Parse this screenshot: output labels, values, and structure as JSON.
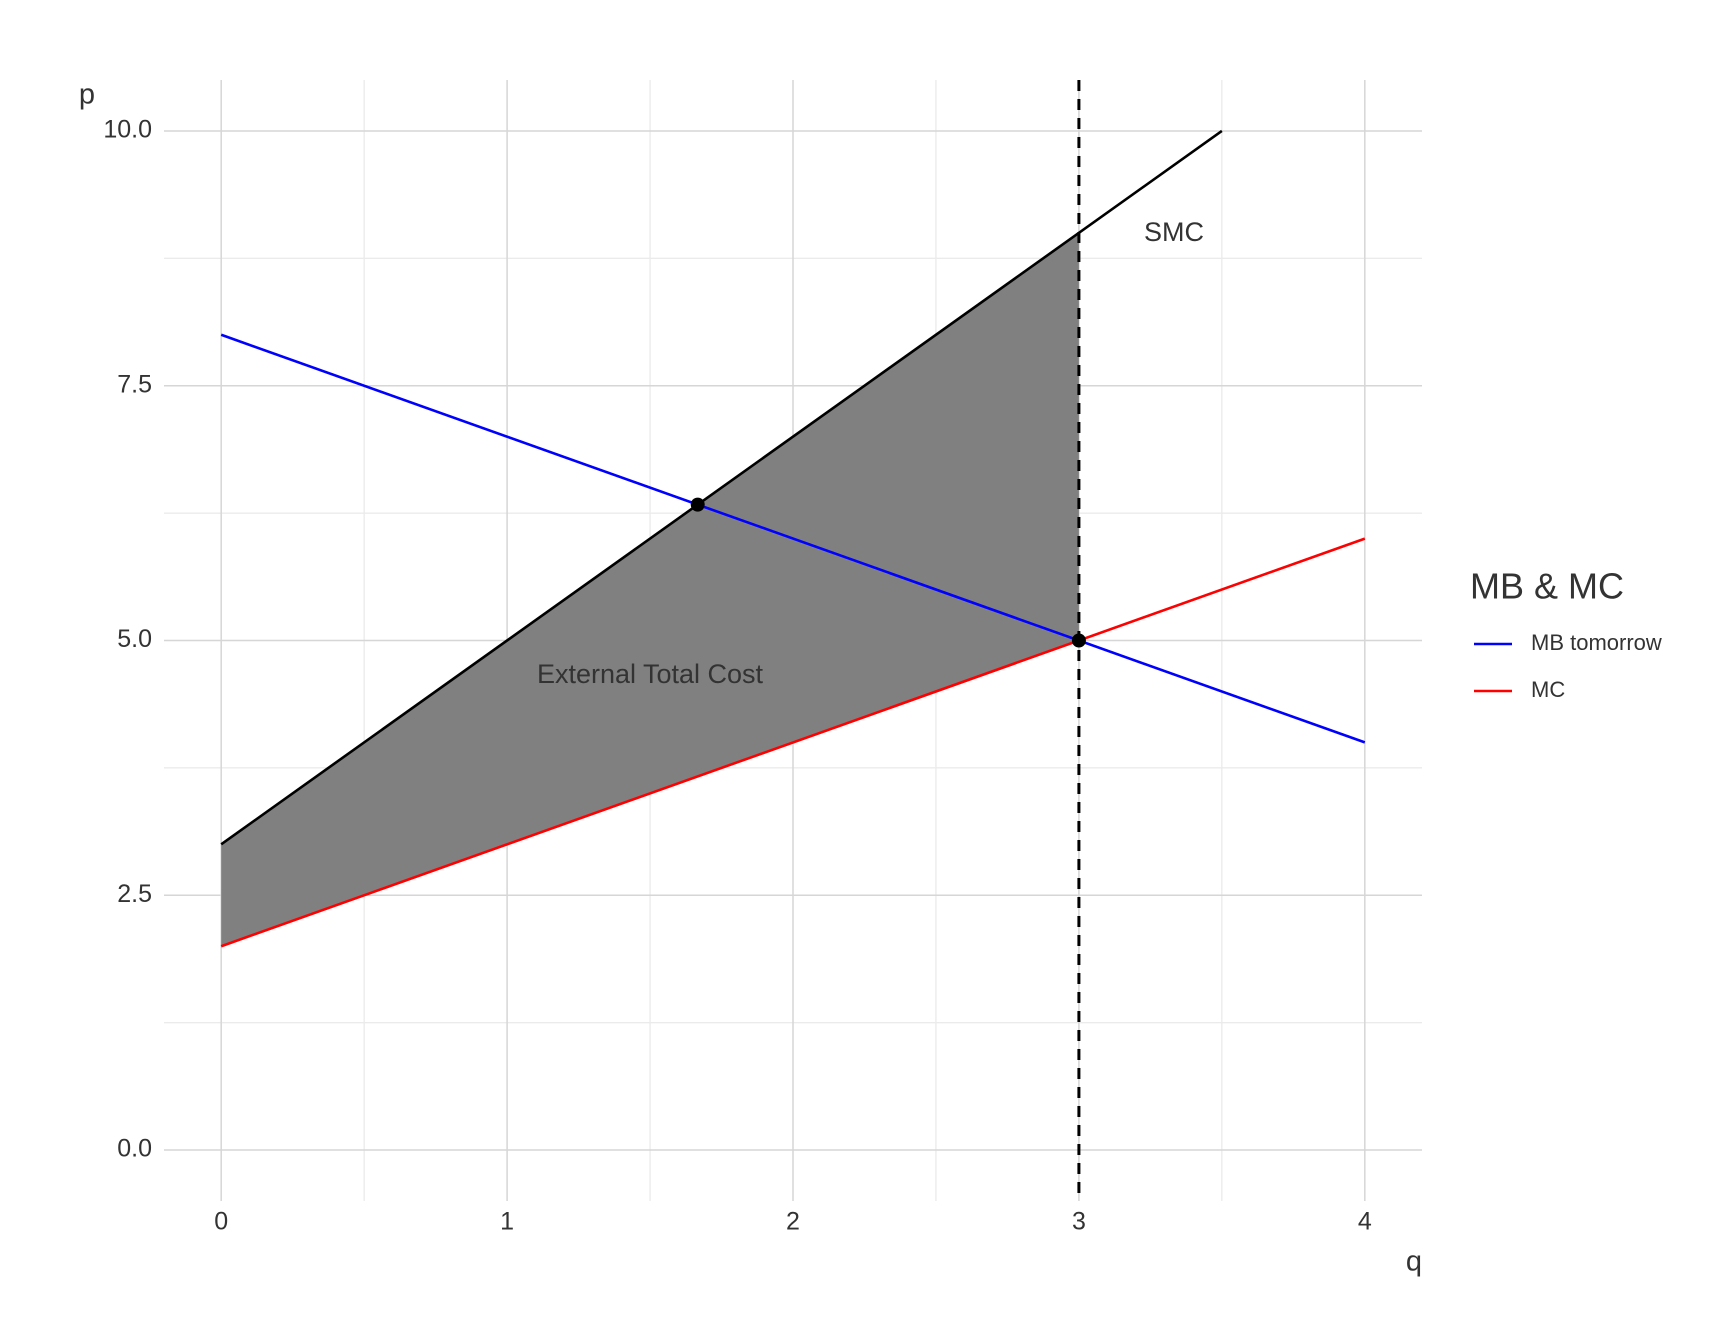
{
  "chart_data": {
    "type": "line",
    "x_label": "q",
    "y_label": "p",
    "xlim": [
      -0.2,
      4.2
    ],
    "ylim": [
      -0.5,
      10.5
    ],
    "xticks": [
      0,
      1,
      2,
      3,
      4
    ],
    "yticks": [
      {
        "value": 0,
        "label": "0.0"
      },
      {
        "value": 2.5,
        "label": "2.5"
      },
      {
        "value": 5,
        "label": "5.0"
      },
      {
        "value": 7.5,
        "label": "7.5"
      },
      {
        "value": 10,
        "label": "10.0"
      }
    ],
    "grid": true,
    "legend_title": "MB & MC",
    "legend_position": "right",
    "series": [
      {
        "name": "MB tomorrow",
        "color": "#0000ff",
        "x": [
          0,
          4
        ],
        "values": [
          8,
          4
        ]
      },
      {
        "name": "MC",
        "color": "#ff0000",
        "x": [
          0,
          4
        ],
        "values": [
          2,
          6
        ]
      }
    ],
    "smc": {
      "label": "SMC",
      "color": "#000000",
      "x": [
        0,
        3.5
      ],
      "values": [
        3,
        10
      ]
    },
    "area": {
      "label": "External Total Cost",
      "color": "#808080",
      "x": [
        0,
        3,
        3,
        0
      ],
      "values": [
        3,
        9,
        5,
        2
      ]
    },
    "vline": 3,
    "points": {
      "x": [
        1.6667,
        3
      ],
      "values": [
        6.3333,
        5
      ]
    }
  }
}
